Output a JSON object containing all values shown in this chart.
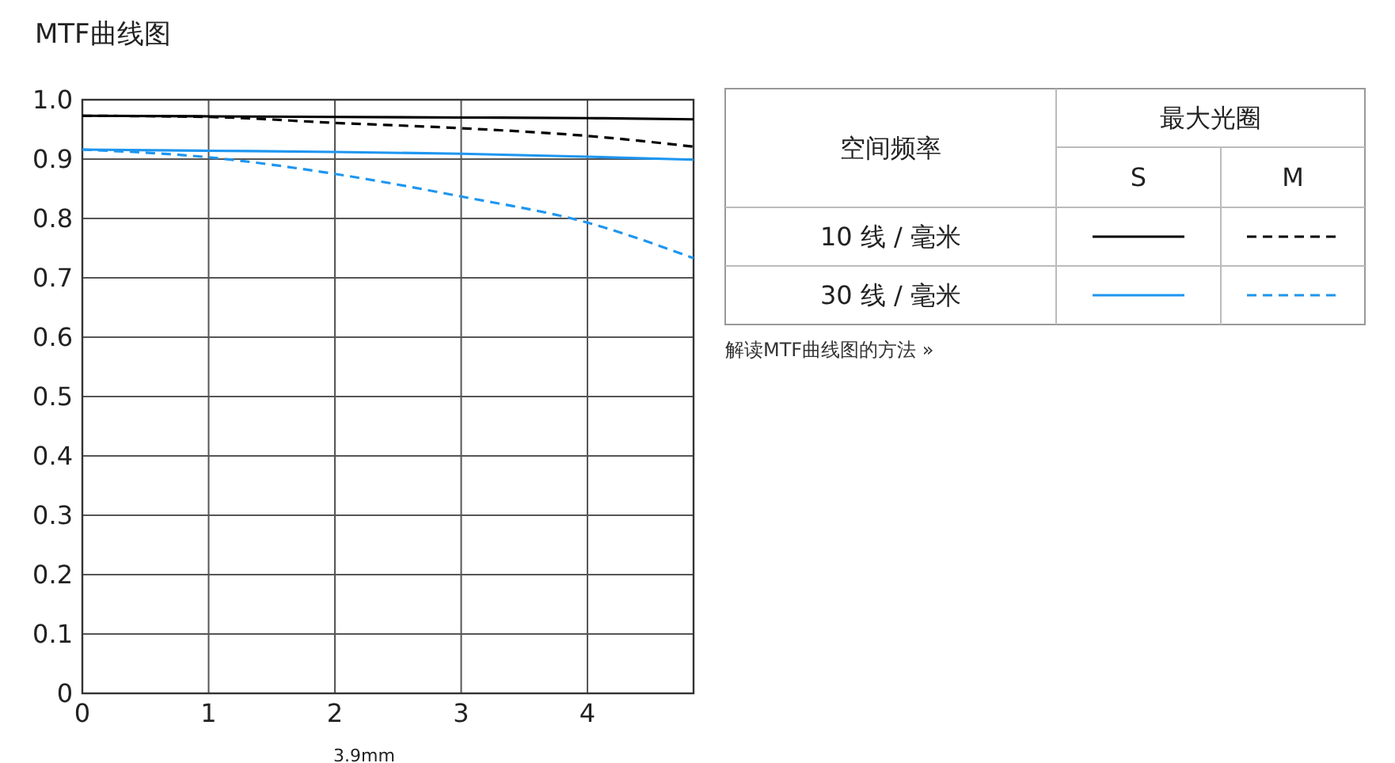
{
  "chart_data": {
    "type": "line",
    "title": "MTF曲线图",
    "xlabel": "3.9mm",
    "x": [
      0,
      1,
      2,
      3,
      4,
      4.84
    ],
    "series": [
      {
        "color": "#000000",
        "line_style": "solid",
        "values": [
          0.973,
          0.972,
          0.971,
          0.97,
          0.969,
          0.967
        ]
      },
      {
        "color": "#000000",
        "line_style": "dashed",
        "values": [
          0.973,
          0.971,
          0.961,
          0.952,
          0.939,
          0.921
        ]
      },
      {
        "color": "#1e96f0",
        "line_style": "solid",
        "values": [
          0.916,
          0.914,
          0.912,
          0.909,
          0.904,
          0.899
        ]
      },
      {
        "color": "#1e96f0",
        "line_style": "dashed",
        "values": [
          0.916,
          0.903,
          0.875,
          0.837,
          0.793,
          0.733
        ]
      }
    ],
    "xlim": [
      0,
      4.84
    ],
    "xticks": [
      0,
      1,
      2,
      3,
      4
    ],
    "ylim": [
      0,
      1
    ],
    "yticks": [
      {
        "value": 0,
        "label": "0"
      },
      0.1,
      0.2,
      0.3,
      0.4,
      0.5,
      0.6,
      0.7,
      0.8,
      0.9,
      {
        "value": 1,
        "label": "1.0"
      }
    ],
    "grid": true,
    "marker": "none",
    "annotations": [
      "空间频率",
      "最大光圈",
      "S",
      "M",
      "10 线 / 毫米",
      "30 线 / 毫米",
      "解读MTF曲线图的方法 »"
    ]
  }
}
